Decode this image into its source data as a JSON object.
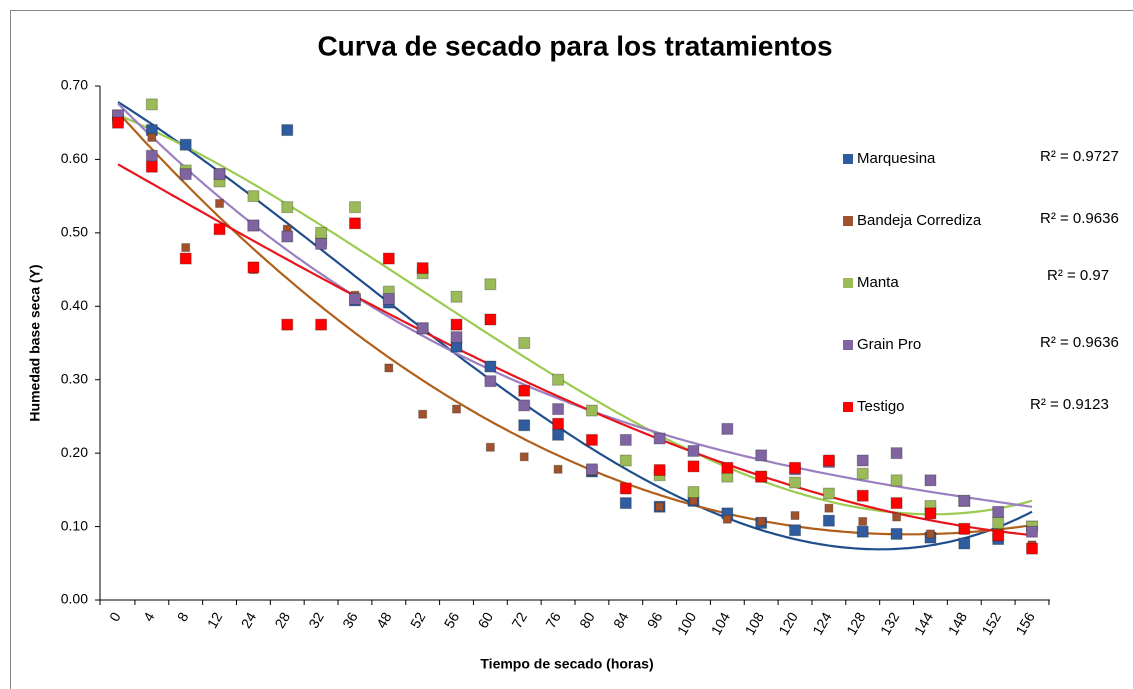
{
  "chart_data": {
    "type": "scatter",
    "title": "Curva de secado para los tratamientos",
    "x_label": "Tiempo de secado (horas)",
    "y_label": "Humedad base seca (Y)",
    "categories": [
      "0",
      "4",
      "8",
      "12",
      "24",
      "28",
      "32",
      "36",
      "48",
      "52",
      "56",
      "60",
      "72",
      "76",
      "80",
      "84",
      "96",
      "100",
      "104",
      "108",
      "120",
      "124",
      "128",
      "132",
      "144",
      "148",
      "152",
      "156"
    ],
    "ylim": [
      0,
      0.7
    ],
    "yticks": [
      {
        "value": 0,
        "label": "0.00"
      },
      {
        "value": 0.1,
        "label": "0.10"
      },
      {
        "value": 0.2,
        "label": "0.20"
      },
      {
        "value": 0.3,
        "label": "0.30"
      },
      {
        "value": 0.4,
        "label": "0.40"
      },
      {
        "value": 0.5,
        "label": "0.50"
      },
      {
        "value": 0.6,
        "label": "0.60"
      },
      {
        "value": 0.7,
        "label": "0.70"
      }
    ],
    "grid": false,
    "legend": "right",
    "series": [
      {
        "name": "Marquesina",
        "color": "#2e5c9e",
        "trendline_color": "#1f4e8c",
        "trendline_label": "R² = 0.9727",
        "values": [
          0.655,
          0.64,
          0.62,
          0.58,
          0.51,
          0.64,
          0.49,
          0.408,
          0.405,
          0.37,
          0.345,
          0.318,
          0.238,
          0.225,
          0.175,
          0.132,
          0.127,
          0.135,
          0.118,
          0.105,
          0.095,
          0.108,
          0.093,
          0.09,
          0.085,
          0.077,
          0.083,
          0.1
        ]
      },
      {
        "name": "Bandeja Corrediza",
        "color": "#a0522d",
        "trendline_color": "#b0601a",
        "trendline_label": "R² = 0.9636",
        "values": [
          0.66,
          0.63,
          0.48,
          0.54,
          0.45,
          0.505,
          0.49,
          0.415,
          0.316,
          0.253,
          0.26,
          0.208,
          0.195,
          0.178,
          0.175,
          0.15,
          0.127,
          0.135,
          0.11,
          0.107,
          0.115,
          0.125,
          0.107,
          0.113,
          0.09,
          0.095,
          0.09,
          0.075
        ]
      },
      {
        "name": "Manta",
        "color": "#9bbb59",
        "trendline_color": "#9bcb50",
        "trendline_label": "R² = 0.97",
        "values": [
          0.66,
          0.675,
          0.585,
          0.57,
          0.55,
          0.535,
          0.5,
          0.535,
          0.42,
          0.445,
          0.413,
          0.43,
          0.35,
          0.3,
          0.258,
          0.19,
          0.17,
          0.147,
          0.168,
          0.168,
          0.16,
          0.145,
          0.172,
          0.163,
          0.128,
          0.135,
          0.105,
          0.1
        ]
      },
      {
        "name": "Grain Pro",
        "color": "#8064a2",
        "trendline_color": "#9b7fc0",
        "trendline_label": "R² = 0.9636",
        "values": [
          0.66,
          0.605,
          0.58,
          0.58,
          0.51,
          0.495,
          0.485,
          0.41,
          0.41,
          0.37,
          0.358,
          0.298,
          0.265,
          0.26,
          0.178,
          0.218,
          0.22,
          0.203,
          0.233,
          0.197,
          0.178,
          0.188,
          0.19,
          0.2,
          0.163,
          0.135,
          0.12,
          0.093
        ]
      },
      {
        "name": "Testigo",
        "color": "#ff0000",
        "trendline_color": "#e8141c",
        "trendline_label": "R² = 0.9123",
        "values": [
          0.65,
          0.59,
          0.465,
          0.505,
          0.453,
          0.375,
          0.375,
          0.513,
          0.465,
          0.452,
          0.375,
          0.382,
          0.285,
          0.24,
          0.218,
          0.152,
          0.177,
          0.182,
          0.18,
          0.168,
          0.18,
          0.19,
          0.142,
          0.132,
          0.118,
          0.097,
          0.088,
          0.07
        ]
      }
    ]
  }
}
